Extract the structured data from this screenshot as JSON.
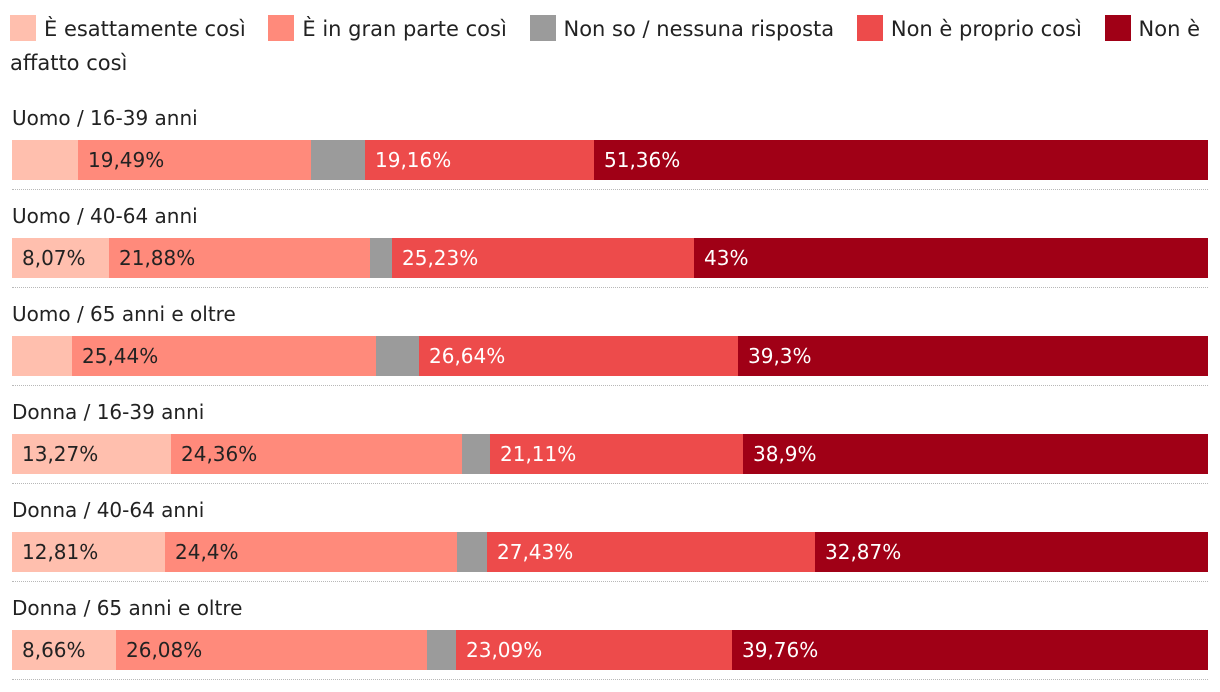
{
  "chart_data": {
    "type": "bar",
    "orientation": "horizontal",
    "stacked": true,
    "normalized": true,
    "legend_position": "top",
    "xlim": [
      0,
      100
    ],
    "categories": [
      "Uomo / 16-39 anni",
      "Uomo / 40-64 anni",
      "Uomo / 65 anni e oltre",
      "Donna / 16-39 anni",
      "Donna / 40-64 anni",
      "Donna / 65 anni e oltre"
    ],
    "series": [
      {
        "name": "È esattamente così",
        "color": "#ffbfae",
        "label_color": "#222222",
        "values": [
          5.5,
          8.07,
          5.0,
          13.27,
          12.81,
          8.66
        ],
        "labels": [
          "",
          "8,07%",
          "",
          "13,27%",
          "12,81%",
          "8,66%"
        ]
      },
      {
        "name": "È in gran parte così",
        "color": "#ff8a7b",
        "label_color": "#222222",
        "values": [
          19.49,
          21.88,
          25.44,
          24.36,
          24.4,
          26.08
        ],
        "labels": [
          "19,49%",
          "21,88%",
          "25,44%",
          "24,36%",
          "24,4%",
          "26,08%"
        ]
      },
      {
        "name": "Non so / nessuna risposta",
        "color": "#9b9b9b",
        "label_color": "#ffffff",
        "values": [
          4.49,
          1.82,
          3.62,
          2.36,
          2.49,
          2.41
        ],
        "labels": [
          "",
          "",
          "",
          "",
          "",
          ""
        ]
      },
      {
        "name": "Non è proprio così",
        "color": "#ed4b4b",
        "label_color": "#ffffff",
        "values": [
          19.16,
          25.23,
          26.64,
          21.11,
          27.43,
          23.09
        ],
        "labels": [
          "19,16%",
          "25,23%",
          "26,64%",
          "21,11%",
          "27,43%",
          "23,09%"
        ]
      },
      {
        "name": "Non è affatto così",
        "color": "#a00016",
        "label_color": "#ffffff",
        "values": [
          51.36,
          43.0,
          39.3,
          38.9,
          32.87,
          39.76
        ],
        "labels": [
          "51,36%",
          "43%",
          "39,3%",
          "38,9%",
          "32,87%",
          "39,76%"
        ]
      }
    ]
  }
}
